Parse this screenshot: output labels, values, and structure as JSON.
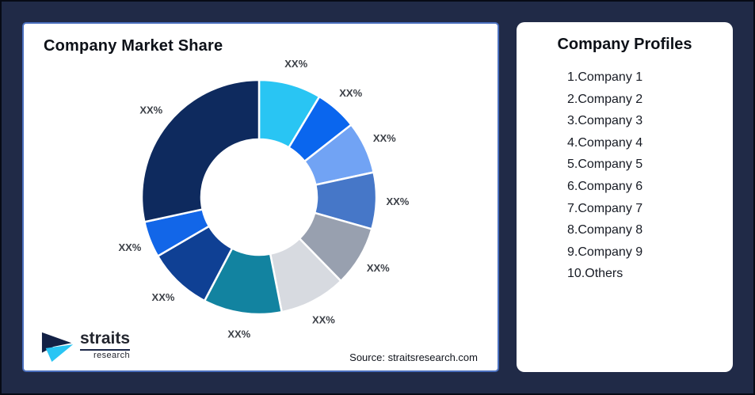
{
  "chart_card": {
    "title": "Company Market Share",
    "source": "Source: straitsresearch.com"
  },
  "logo": {
    "name": "straits",
    "sub": "research"
  },
  "profiles": {
    "title": "Company Profiles",
    "items": [
      "1.Company 1",
      "2.Company 2",
      "3.Company 3",
      "4.Company 4",
      "5.Company 5",
      "6.Company 6",
      "7.Company 7",
      "8.Company 8",
      "9.Company 9",
      "10.Others"
    ]
  },
  "chart_data": {
    "type": "pie",
    "subtype": "donut",
    "title": "Company Market Share",
    "legend": "none",
    "direction": "clockwise",
    "start_angle_deg": 0,
    "inner_radius_ratio": 0.49,
    "data_labels": "outside",
    "segments": [
      {
        "name": "Company 1",
        "label": "XX%",
        "value_pct": 8.6,
        "color": "#29C5F3"
      },
      {
        "name": "Company 2",
        "label": "XX%",
        "value_pct": 5.8,
        "color": "#0A66EE"
      },
      {
        "name": "Company 3",
        "label": "XX%",
        "value_pct": 7.2,
        "color": "#71A3F4"
      },
      {
        "name": "Company 4",
        "label": "XX%",
        "value_pct": 7.8,
        "color": "#4677C8"
      },
      {
        "name": "Company 5",
        "label": "XX%",
        "value_pct": 8.3,
        "color": "#98A0AF"
      },
      {
        "name": "Company 6",
        "label": "XX%",
        "value_pct": 9.2,
        "color": "#D7DAE0"
      },
      {
        "name": "Company 7",
        "label": "XX%",
        "value_pct": 10.8,
        "color": "#1283A0"
      },
      {
        "name": "Company 8",
        "label": "XX%",
        "value_pct": 8.9,
        "color": "#0F4094"
      },
      {
        "name": "Company 9",
        "label": "XX%",
        "value_pct": 5.0,
        "color": "#1266E8"
      },
      {
        "name": "Others",
        "label": "XX%",
        "value_pct": 28.4,
        "color": "#0E2A5E"
      }
    ]
  },
  "colors": {
    "background": "#202A47",
    "card_border": "#4A6FBE",
    "label_text": "#3C4047",
    "logo_navy": "#132145",
    "logo_cyan": "#29C5F4"
  }
}
